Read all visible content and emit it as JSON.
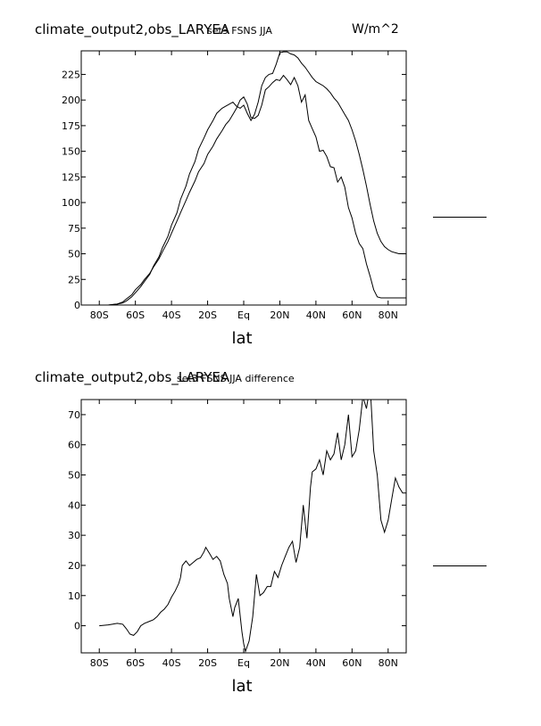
{
  "colors": {
    "line": "#000000",
    "background": "#ffffff"
  },
  "chart_data": [
    {
      "type": "line",
      "title": "climate_output2,obs_LARYEA",
      "subtitle": "set3 FSNS JJA",
      "units": "W/m^2",
      "xlabel": "lat",
      "ylabel": "",
      "xlim": [
        -90,
        90
      ],
      "ylim": [
        0,
        248
      ],
      "x_ticks": [
        -80,
        -60,
        -40,
        -20,
        0,
        20,
        40,
        60,
        80
      ],
      "x_tick_labels": [
        "80S",
        "60S",
        "40S",
        "20S",
        "Eq",
        "20N",
        "40N",
        "60N",
        "80N"
      ],
      "y_ticks": [
        0,
        25,
        50,
        75,
        100,
        125,
        150,
        175,
        200,
        225
      ],
      "y_tick_labels": [
        "0",
        "25",
        "50",
        "75",
        "100",
        "125",
        "150",
        "175",
        "200",
        "225"
      ],
      "grid": false,
      "series": [
        {
          "x": [
            -90,
            -85,
            -80,
            -75,
            -70,
            -67,
            -65,
            -62,
            -60,
            -57,
            -55,
            -52,
            -50,
            -47,
            -45,
            -42,
            -40,
            -37,
            -35,
            -32,
            -30,
            -27,
            -25,
            -22,
            -20,
            -17,
            -15,
            -12,
            -10,
            -8,
            -6,
            -4,
            -2,
            0,
            2,
            4,
            6,
            8,
            10,
            12,
            14,
            16,
            18,
            20,
            22,
            24,
            26,
            28,
            30,
            32,
            34,
            36,
            38,
            40,
            42,
            44,
            46,
            48,
            50,
            52,
            54,
            56,
            58,
            60,
            62,
            64,
            66,
            68,
            70,
            72,
            74,
            76,
            78,
            80,
            82,
            84,
            86,
            88,
            90
          ],
          "values": [
            0,
            0,
            0,
            0,
            1,
            2,
            4,
            8,
            12,
            18,
            23,
            30,
            38,
            47,
            56,
            67,
            78,
            90,
            103,
            116,
            128,
            140,
            152,
            163,
            171,
            180,
            187,
            192,
            194,
            196,
            198,
            194,
            192,
            195,
            187,
            180,
            186,
            198,
            214,
            222,
            225,
            226,
            235,
            246,
            247,
            247,
            245,
            244,
            241,
            236,
            232,
            227,
            222,
            218,
            216,
            214,
            211,
            207,
            202,
            198,
            192,
            186,
            180,
            171,
            160,
            147,
            132,
            116,
            98,
            82,
            70,
            62,
            57,
            54,
            52,
            51,
            50,
            50,
            50
          ]
        },
        {
          "x": [
            -90,
            -85,
            -80,
            -75,
            -70,
            -67,
            -65,
            -62,
            -60,
            -57,
            -55,
            -52,
            -50,
            -47,
            -45,
            -42,
            -40,
            -37,
            -35,
            -32,
            -30,
            -27,
            -25,
            -22,
            -20,
            -17,
            -15,
            -12,
            -10,
            -8,
            -6,
            -4,
            -2,
            0,
            2,
            4,
            6,
            8,
            10,
            12,
            14,
            16,
            18,
            20,
            22,
            24,
            26,
            28,
            30,
            32,
            34,
            36,
            38,
            40,
            42,
            44,
            46,
            48,
            50,
            52,
            54,
            56,
            58,
            60,
            62,
            64,
            66,
            68,
            70,
            72,
            74,
            76,
            78,
            80,
            82,
            84,
            86,
            88,
            90
          ],
          "values": [
            0,
            0,
            0,
            0,
            1,
            3,
            6,
            10,
            15,
            20,
            25,
            31,
            37,
            45,
            52,
            62,
            70,
            82,
            90,
            102,
            110,
            121,
            130,
            138,
            147,
            155,
            162,
            170,
            176,
            180,
            186,
            192,
            200,
            203,
            196,
            183,
            182,
            185,
            195,
            210,
            213,
            217,
            220,
            219,
            224,
            220,
            215,
            222,
            214,
            198,
            205,
            180,
            172,
            164,
            150,
            151,
            145,
            135,
            134,
            120,
            125,
            115,
            95,
            85,
            70,
            60,
            55,
            40,
            28,
            15,
            8,
            7,
            7,
            7,
            7,
            7,
            7,
            7,
            7
          ]
        }
      ]
    },
    {
      "type": "line",
      "title": "climate_output2,obs_LARYEA",
      "subtitle": "set3 FSNS JJA difference",
      "units": "",
      "xlabel": "lat",
      "ylabel": "",
      "xlim": [
        -90,
        90
      ],
      "ylim": [
        -9,
        75
      ],
      "x_ticks": [
        -80,
        -60,
        -40,
        -20,
        0,
        20,
        40,
        60,
        80
      ],
      "x_tick_labels": [
        "80S",
        "60S",
        "40S",
        "20S",
        "Eq",
        "20N",
        "40N",
        "60N",
        "80N"
      ],
      "y_ticks": [
        0,
        10,
        20,
        30,
        40,
        50,
        60,
        70
      ],
      "y_tick_labels": [
        "0",
        "10",
        "20",
        "30",
        "40",
        "50",
        "60",
        "70"
      ],
      "grid": false,
      "series": [
        {
          "x": [
            -80,
            -75,
            -70,
            -67,
            -65,
            -63,
            -61,
            -59,
            -57,
            -55,
            -52,
            -50,
            -48,
            -46,
            -44,
            -42,
            -40,
            -38,
            -36,
            -35,
            -34,
            -32,
            -30,
            -28,
            -26,
            -24,
            -22,
            -21,
            -19,
            -17,
            -15,
            -13,
            -11,
            -9,
            -8,
            -6,
            -5,
            -3,
            -1,
            0,
            1,
            3,
            5,
            7,
            9,
            11,
            13,
            15,
            17,
            19,
            21,
            23,
            25,
            27,
            29,
            31,
            33,
            35,
            37,
            38,
            40,
            42,
            44,
            46,
            48,
            50,
            52,
            54,
            56,
            58,
            60,
            62,
            64,
            66,
            68,
            70,
            72,
            74,
            76,
            78,
            80,
            82,
            84,
            86,
            88,
            90
          ],
          "values": [
            0,
            0.3,
            0.8,
            0.5,
            -1,
            -2.8,
            -3.2,
            -2,
            0,
            0.8,
            1.5,
            2,
            3,
            4.5,
            5.5,
            7,
            9.5,
            11.5,
            14,
            16,
            20,
            21.5,
            20,
            21,
            22,
            22.5,
            24.5,
            26,
            24,
            22,
            23,
            21.5,
            17,
            14,
            9,
            3,
            6,
            9,
            -2,
            -6,
            -8.5,
            -5,
            3,
            17,
            10,
            11,
            13,
            13,
            18,
            16,
            20,
            23,
            26,
            28,
            21,
            26,
            40,
            29,
            46,
            51,
            52,
            55,
            50,
            58,
            55,
            57,
            64,
            55,
            60,
            70,
            56,
            58,
            65,
            76,
            72,
            80,
            58,
            50,
            35,
            31,
            35,
            42,
            49,
            46,
            44,
            44
          ]
        }
      ]
    }
  ]
}
